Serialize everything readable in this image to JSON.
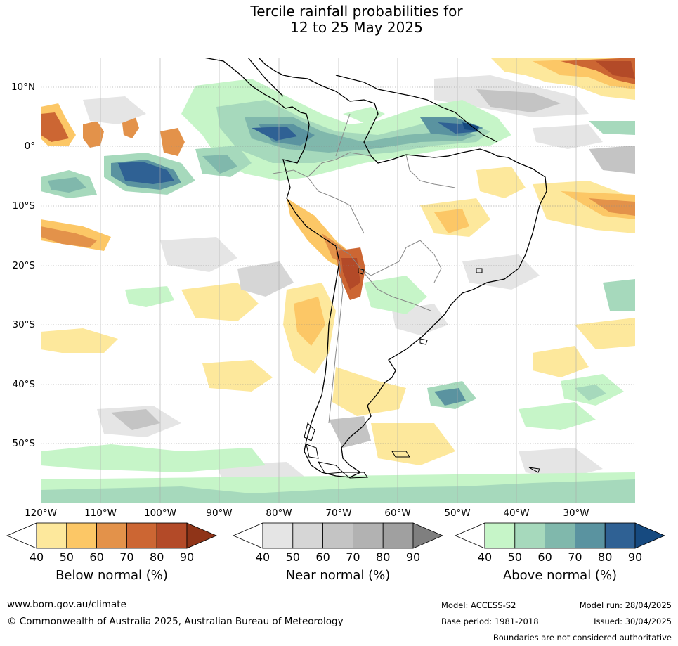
{
  "title": {
    "line1": "Tercile rainfall probabilities for",
    "line2": "12 to 25 May 2025"
  },
  "map": {
    "latitude_labels": [
      "10°N",
      "0°",
      "10°S",
      "20°S",
      "30°S",
      "40°S",
      "50°S"
    ],
    "longitude_labels": [
      "120°W",
      "110°W",
      "100°W",
      "90°W",
      "80°W",
      "70°W",
      "60°W",
      "50°W",
      "40°W",
      "30°W"
    ]
  },
  "legend": {
    "below": {
      "title": "Below normal (%)",
      "ticks": [
        "40",
        "50",
        "60",
        "70",
        "80",
        "90"
      ],
      "colors": [
        "#ffffff",
        "#fde89c",
        "#fcc766",
        "#e3924a",
        "#cc6633",
        "#b34a28",
        "#8f3418"
      ]
    },
    "near": {
      "title": "Near normal (%)",
      "ticks": [
        "40",
        "50",
        "60",
        "70",
        "80",
        "90"
      ],
      "colors": [
        "#ffffff",
        "#e5e5e5",
        "#d6d6d6",
        "#c4c4c4",
        "#b2b2b2",
        "#a0a0a0",
        "#7f7f7f"
      ]
    },
    "above": {
      "title": "Above normal (%)",
      "ticks": [
        "40",
        "50",
        "60",
        "70",
        "80",
        "90"
      ],
      "colors": [
        "#ffffff",
        "#c6f5c8",
        "#a6d9bc",
        "#80b8ac",
        "#5a93a0",
        "#2f6194",
        "#164a80"
      ]
    }
  },
  "footer": {
    "website": "www.bom.gov.au/climate",
    "copyright": "© Commonwealth of Australia 2025, Australian Bureau of Meteorology",
    "model": "Model: ACCESS-S2",
    "model_run": "Model run: 28/04/2025",
    "base_period": "Base period: 1981-2018",
    "issued": "Issued: 30/04/2025",
    "disclaimer": "Boundaries are not considered authoritative"
  }
}
